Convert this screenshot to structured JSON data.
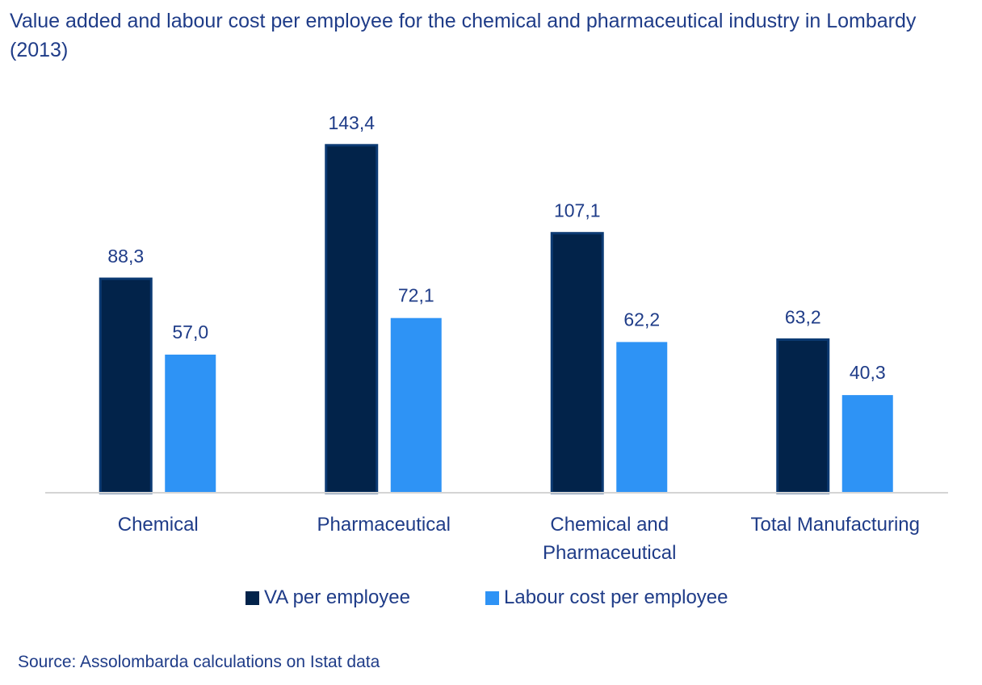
{
  "chart_data": {
    "type": "bar",
    "title": "Value added and labour cost per employee for the chemical and pharmaceutical industry in Lombardy (2013)",
    "categories": [
      [
        "Chemical"
      ],
      [
        "Pharmaceutical"
      ],
      [
        "Chemical and",
        "Pharmaceutical"
      ],
      [
        "Total Manufacturing"
      ]
    ],
    "series": [
      {
        "name": "VA per employee",
        "color": "#02234a",
        "values": [
          88.3,
          143.4,
          107.1,
          63.2
        ],
        "labels": [
          "88,3",
          "143,4",
          "107,1",
          "63,2"
        ]
      },
      {
        "name": "Labour cost per employee",
        "color": "#2e93f5",
        "values": [
          57.0,
          72.1,
          62.2,
          40.3
        ],
        "labels": [
          "57,0",
          "72,1",
          "62,2",
          "40,3"
        ]
      }
    ],
    "ylim": [
      0,
      170
    ],
    "grid": false,
    "legend_position": "bottom",
    "axis_color": "#d4d4d4"
  },
  "source": "Source: Assolombarda calculations on Istat data"
}
